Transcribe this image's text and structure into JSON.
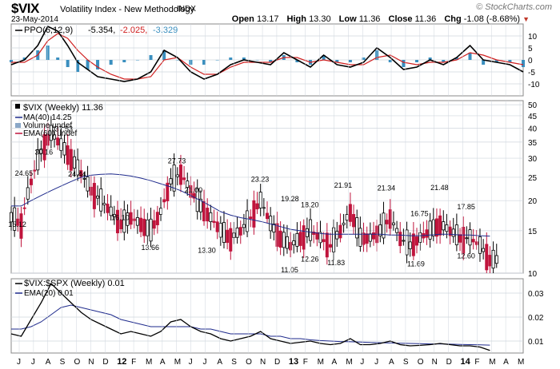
{
  "header": {
    "symbol": "$VIX",
    "name": "Volatility Index - New Methodology",
    "exchange": "INDX",
    "date": "23-May-2014",
    "brand": "© StockCharts.com",
    "quote": {
      "open_label": "Open",
      "open": "13.17",
      "high_label": "High",
      "high": "13.30",
      "low_label": "Low",
      "low": "11.36",
      "close_label": "Close",
      "close": "11.36",
      "chg_label": "Chg",
      "chg": "-1.08 (-8.68%)"
    }
  },
  "colors": {
    "up": "#000000",
    "down": "#c0143c",
    "ma": "#1e2a8c",
    "ppo_signal": "#d02020",
    "histogram": "#3a8fbf",
    "grid": "#cfd6de",
    "panel_border": "#888888"
  },
  "panels": {
    "ppo": {
      "legend_prefix": "PPO(6,12,9)",
      "ppo": "-5.354,",
      "signal": "-2.025,",
      "hist": "-3.329"
    },
    "price": {
      "legend": "$VIX (Weekly) 11.36",
      "ma": "MA(40) 14.25",
      "volume": "Volume undef",
      "ema": "EMA(60) undef"
    },
    "ratio": {
      "legend": "$VIX:$SPX (Weekly) 0.01",
      "ema": "EMA(20) 0.01"
    }
  },
  "chart_data": [
    {
      "type": "line",
      "title": "PPO(6,12,9)",
      "y_ticks": [
        -10,
        -5,
        0,
        5,
        10
      ],
      "ylim": [
        -15,
        15
      ],
      "grid": true,
      "x": [
        0,
        4,
        8,
        11,
        14,
        17,
        20,
        23,
        26,
        30,
        34,
        38,
        42,
        46,
        50,
        54,
        58,
        62,
        66,
        70,
        74,
        78,
        82,
        86,
        90,
        94,
        98,
        102,
        106,
        110,
        114,
        118,
        122,
        126,
        130,
        134,
        138,
        142,
        146,
        150,
        154
      ],
      "series": [
        {
          "name": "PPO",
          "values": [
            -2,
            0,
            6,
            14,
            12,
            6,
            -1,
            -4,
            -7,
            -8,
            -9,
            -8,
            -5,
            4,
            1,
            -5,
            -8,
            -6,
            -2,
            0,
            -1,
            -2,
            3,
            0,
            -3,
            2,
            -2,
            -3,
            -1,
            5,
            1,
            -4,
            -3,
            0,
            -2,
            1,
            6,
            0,
            -1,
            -2,
            -5
          ]
        },
        {
          "name": "Signal",
          "values": [
            -1,
            -1,
            2,
            8,
            11,
            9,
            4,
            0,
            -3,
            -6,
            -8,
            -8,
            -7,
            0,
            1,
            -3,
            -6,
            -6,
            -3,
            -1,
            -1,
            -1,
            1,
            1,
            -1,
            0,
            -1,
            -2,
            -2,
            1,
            2,
            -1,
            -2,
            -1,
            -1,
            0,
            3,
            2,
            0,
            -1,
            -2
          ]
        },
        {
          "name": "Histogram",
          "values": [
            -1,
            1,
            4,
            6,
            1,
            -3,
            -5,
            -4,
            -4,
            -2,
            -1,
            0,
            2,
            4,
            0,
            -2,
            -2,
            0,
            1,
            1,
            0,
            -1,
            2,
            -1,
            -2,
            2,
            -1,
            -1,
            1,
            4,
            -1,
            -3,
            -1,
            1,
            -1,
            1,
            3,
            -2,
            -1,
            -1,
            -3
          ]
        }
      ]
    },
    {
      "type": "candlestick",
      "title": "$VIX (Weekly) 11.36",
      "scale": "log",
      "y_ticks": [
        10,
        15,
        20,
        25,
        30,
        35,
        40,
        45,
        50
      ],
      "ylim": [
        10,
        52
      ],
      "annotations": [
        {
          "x": 2,
          "y": 15.12,
          "label": "15.12"
        },
        {
          "x": 4,
          "y": 24.65,
          "label": "24.65"
        },
        {
          "x": 10,
          "y": 30.16,
          "label": "30.16"
        },
        {
          "x": 16,
          "y": 37.53,
          "label": "37.53"
        },
        {
          "x": 20,
          "y": 24.44,
          "label": "24.44"
        },
        {
          "x": 33,
          "y": 16.1,
          "label": "16.10"
        },
        {
          "x": 42,
          "y": 13.66,
          "label": "13.66"
        },
        {
          "x": 50,
          "y": 27.73,
          "label": "27.73"
        },
        {
          "x": 55,
          "y": 21.0,
          "label": "21.00"
        },
        {
          "x": 59,
          "y": 13.3,
          "label": "13.30"
        },
        {
          "x": 75,
          "y": 23.23,
          "label": "23.23"
        },
        {
          "x": 84,
          "y": 11.05,
          "label": "11.05"
        },
        {
          "x": 84,
          "y": 19.28,
          "label": "19.28"
        },
        {
          "x": 90,
          "y": 12.26,
          "label": "12.26"
        },
        {
          "x": 90,
          "y": 18.2,
          "label": "18.20"
        },
        {
          "x": 98,
          "y": 11.83,
          "label": "11.83"
        },
        {
          "x": 100,
          "y": 21.91,
          "label": "21.91"
        },
        {
          "x": 113,
          "y": 21.34,
          "label": "21.34"
        },
        {
          "x": 122,
          "y": 11.69,
          "label": "11.69"
        },
        {
          "x": 123,
          "y": 16.75,
          "label": "16.75"
        },
        {
          "x": 129,
          "y": 21.48,
          "label": "21.48"
        },
        {
          "x": 137,
          "y": 17.85,
          "label": "17.85"
        },
        {
          "x": 137,
          "y": 12.6,
          "label": "12.60"
        }
      ],
      "x": [
        0,
        3,
        6,
        9,
        12,
        15,
        18,
        21,
        24,
        27,
        30,
        33,
        36,
        39,
        42,
        45,
        48,
        51,
        54,
        57,
        60,
        63,
        66,
        69,
        72,
        75,
        78,
        81,
        84,
        87,
        90,
        93,
        96,
        99,
        102,
        105,
        108,
        111,
        114,
        117,
        120,
        123,
        126,
        129,
        132,
        135,
        138,
        141,
        144
      ],
      "series": [
        {
          "name": "$VIX",
          "values": [
            17,
            16,
            24,
            32,
            38,
            34,
            30,
            26,
            22,
            20,
            18,
            16,
            17,
            16,
            15,
            18,
            24,
            26,
            22,
            19,
            17,
            15,
            14,
            15,
            17,
            20,
            16,
            14,
            13,
            14,
            15,
            14,
            13,
            15,
            18,
            14,
            14,
            15,
            17,
            14,
            13,
            14,
            15,
            16,
            15,
            14,
            14,
            13,
            11.36
          ]
        },
        {
          "name": "MA(40)",
          "values": [
            19,
            19,
            20,
            21,
            22,
            23,
            24,
            25,
            25.5,
            25.7,
            25.8,
            25.6,
            25.3,
            24.8,
            24.2,
            23.5,
            22.8,
            22,
            21,
            20,
            19,
            18,
            17.4,
            17,
            16.7,
            16.4,
            16,
            15.6,
            15.2,
            15,
            14.8,
            14.6,
            14.5,
            14.5,
            14.5,
            14.5,
            14.5,
            14.5,
            14.4,
            14.4,
            14.3,
            14.3,
            14.4,
            14.5,
            14.5,
            14.4,
            14.4,
            14.3,
            14.25
          ]
        }
      ]
    },
    {
      "type": "line",
      "title": "$VIX:$SPX (Weekly) 0.01",
      "y_ticks": [
        0.01,
        0.02,
        0.03
      ],
      "ylim": [
        0.005,
        0.036
      ],
      "x": [
        0,
        3,
        6,
        9,
        12,
        15,
        18,
        21,
        24,
        27,
        30,
        33,
        36,
        39,
        42,
        45,
        48,
        51,
        54,
        57,
        60,
        63,
        66,
        69,
        72,
        75,
        78,
        81,
        84,
        87,
        90,
        93,
        96,
        99,
        102,
        105,
        108,
        111,
        114,
        117,
        120,
        123,
        126,
        129,
        132,
        135,
        138,
        141,
        144
      ],
      "series": [
        {
          "name": "$VIX:$SPX",
          "values": [
            0.013,
            0.012,
            0.019,
            0.026,
            0.034,
            0.03,
            0.026,
            0.022,
            0.019,
            0.017,
            0.015,
            0.013,
            0.014,
            0.013,
            0.012,
            0.014,
            0.018,
            0.019,
            0.016,
            0.014,
            0.013,
            0.011,
            0.01,
            0.011,
            0.012,
            0.014,
            0.011,
            0.01,
            0.009,
            0.0095,
            0.01,
            0.009,
            0.0085,
            0.009,
            0.011,
            0.0085,
            0.0085,
            0.009,
            0.01,
            0.0085,
            0.008,
            0.0082,
            0.0085,
            0.009,
            0.0085,
            0.008,
            0.008,
            0.0075,
            0.0061
          ]
        },
        {
          "name": "EMA(20)",
          "values": [
            0.015,
            0.015,
            0.016,
            0.018,
            0.021,
            0.024,
            0.025,
            0.024,
            0.023,
            0.022,
            0.021,
            0.019,
            0.018,
            0.017,
            0.016,
            0.016,
            0.016,
            0.016,
            0.016,
            0.015,
            0.015,
            0.014,
            0.013,
            0.013,
            0.013,
            0.013,
            0.012,
            0.012,
            0.011,
            0.011,
            0.0105,
            0.0102,
            0.01,
            0.0098,
            0.0097,
            0.0096,
            0.0094,
            0.0093,
            0.0092,
            0.0091,
            0.009,
            0.0089,
            0.0088,
            0.0088,
            0.0087,
            0.0086,
            0.0085,
            0.0084,
            0.0083
          ]
        }
      ]
    }
  ],
  "x_axis": {
    "labels": [
      "J",
      "J",
      "A",
      "S",
      "O",
      "N",
      "D",
      "12",
      "F",
      "M",
      "A",
      "M",
      "J",
      "J",
      "A",
      "S",
      "O",
      "N",
      "D",
      "13",
      "F",
      "M",
      "A",
      "M",
      "J",
      "J",
      "A",
      "S",
      "O",
      "N",
      "D",
      "14",
      "F",
      "M",
      "A",
      "M"
    ],
    "bold": [
      "12",
      "13",
      "14"
    ]
  }
}
